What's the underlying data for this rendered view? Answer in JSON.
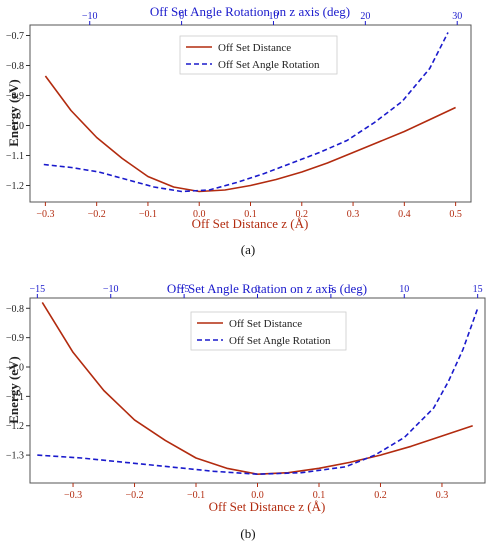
{
  "chart_data": [
    {
      "type": "line",
      "panel_label": "(a)",
      "xlabel": "Off Set Distance z (Å)",
      "ylabel": "Energy (eV)",
      "top_xlabel": "Off Set Angle Rotation on z axis (deg)",
      "xlim": [
        -0.33,
        0.53
      ],
      "ylim": [
        -1.255,
        -0.665
      ],
      "top_xlim": [
        -16.5,
        31.5
      ],
      "x_ticks": [
        -0.3,
        -0.2,
        -0.1,
        0.0,
        0.1,
        0.2,
        0.3,
        0.4,
        0.5
      ],
      "y_ticks": [
        -1.2,
        -1.1,
        -1.0,
        -0.9,
        -0.8,
        -0.7
      ],
      "top_ticks": [
        -10,
        0,
        10,
        20,
        30
      ],
      "grid": false,
      "legend": "top-center",
      "series": [
        {
          "name": "Off Set Distance",
          "axis": "bottom",
          "color": "#b22b0f",
          "style": "solid",
          "x": [
            -0.3,
            -0.25,
            -0.2,
            -0.15,
            -0.1,
            -0.05,
            0.0,
            0.05,
            0.1,
            0.15,
            0.2,
            0.25,
            0.3,
            0.35,
            0.4,
            0.45,
            0.5
          ],
          "y": [
            -0.835,
            -0.95,
            -1.04,
            -1.11,
            -1.17,
            -1.205,
            -1.22,
            -1.215,
            -1.2,
            -1.18,
            -1.155,
            -1.125,
            -1.09,
            -1.055,
            -1.02,
            -0.98,
            -0.94
          ]
        },
        {
          "name": "Off Set Angle Rotation",
          "axis": "top",
          "color": "#1a1acc",
          "style": "dashed",
          "x": [
            -15,
            -12,
            -9,
            -6,
            -3,
            0,
            3,
            6,
            9,
            12,
            15,
            18,
            21,
            24,
            27,
            29
          ],
          "y": [
            -1.13,
            -1.14,
            -1.155,
            -1.18,
            -1.205,
            -1.22,
            -1.215,
            -1.19,
            -1.16,
            -1.125,
            -1.09,
            -1.05,
            -0.99,
            -0.92,
            -0.81,
            -0.69
          ]
        }
      ]
    },
    {
      "type": "line",
      "panel_label": "(b)",
      "xlabel": "Off Set Distance z (Å)",
      "ylabel": "Energy (eV)",
      "top_xlabel": "Off Set Angle Rotation on z axis (deg)",
      "xlim": [
        -0.37,
        0.37
      ],
      "ylim": [
        -1.395,
        -0.765
      ],
      "top_xlim": [
        -15.5,
        15.5
      ],
      "x_ticks": [
        -0.3,
        -0.2,
        -0.1,
        0.0,
        0.1,
        0.2,
        0.3
      ],
      "y_ticks": [
        -1.3,
        -1.2,
        -1.1,
        -1.0,
        -0.9,
        -0.8
      ],
      "top_ticks": [
        -15,
        -10,
        -5,
        0,
        5,
        10,
        15
      ],
      "grid": false,
      "legend": "top-center",
      "series": [
        {
          "name": "Off Set Distance",
          "axis": "bottom",
          "color": "#b22b0f",
          "style": "solid",
          "x": [
            -0.35,
            -0.3,
            -0.25,
            -0.2,
            -0.15,
            -0.1,
            -0.05,
            0.0,
            0.05,
            0.1,
            0.15,
            0.2,
            0.25,
            0.3,
            0.35
          ],
          "y": [
            -0.78,
            -0.95,
            -1.08,
            -1.18,
            -1.25,
            -1.31,
            -1.345,
            -1.365,
            -1.36,
            -1.345,
            -1.325,
            -1.3,
            -1.27,
            -1.235,
            -1.2
          ]
        },
        {
          "name": "Off Set Angle Rotation",
          "axis": "top",
          "color": "#1a1acc",
          "style": "dashed",
          "x": [
            -15,
            -12,
            -9,
            -6,
            -3,
            0,
            3,
            6,
            8,
            10,
            12,
            13,
            14,
            15
          ],
          "y": [
            -1.3,
            -1.31,
            -1.325,
            -1.34,
            -1.355,
            -1.365,
            -1.36,
            -1.34,
            -1.3,
            -1.24,
            -1.14,
            -1.05,
            -0.94,
            -0.8
          ]
        }
      ]
    }
  ]
}
